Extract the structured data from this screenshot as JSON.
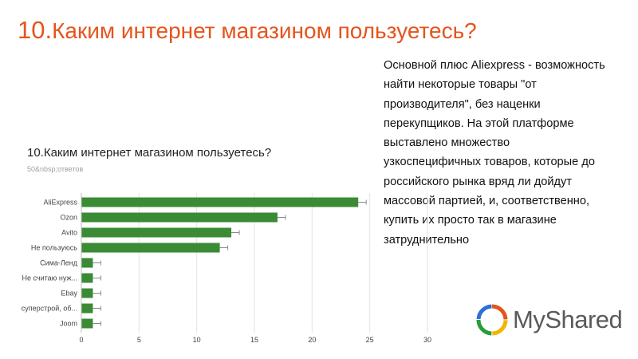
{
  "slide": {
    "title_number": "10.",
    "title_text": "Каким интернет магазином пользуетесь?",
    "side_text_lines": [
      "Основной плюс Aliexpress - возможность",
      "найти некоторые товары \"от",
      "производителя\", без наценки",
      "перекупщиков. На этой платформе",
      "выставлено множество",
      "узкоспецифичных товаров, которые до",
      "российского рынка вряд ли дойдут",
      "массовой партией, и, соответственно,",
      "купить их просто так в магазине",
      "затруднительно"
    ]
  },
  "logo": {
    "text": "MyShared",
    "icon": "myshared-logo-icon",
    "colors": [
      "#e5541d",
      "#f4b400",
      "#2a9d3a",
      "#2f6fd6"
    ]
  },
  "colors": {
    "title": "#e5541d",
    "bar": "#3b8a34",
    "grid": "#e3e3e3"
  },
  "chart_data": {
    "type": "bar",
    "orientation": "horizontal",
    "title": "10.Каким интернет магазином пользуетесь?",
    "subtitle": "50&nbsp;ответов",
    "categories": [
      "AliExpress",
      "Ozon",
      "Avito",
      "Не пользуюсь",
      "Сима-Ленд",
      "Не считаю нуж...",
      "Ebay",
      "суперстрой, об...",
      "Joom"
    ],
    "values": [
      24,
      17,
      13,
      12,
      1,
      1,
      1,
      1,
      1
    ],
    "xlim": [
      0,
      30
    ],
    "xticks": [
      0,
      5,
      10,
      15,
      20,
      25,
      30
    ],
    "grid": true,
    "error_bars": true,
    "legend": "none"
  }
}
